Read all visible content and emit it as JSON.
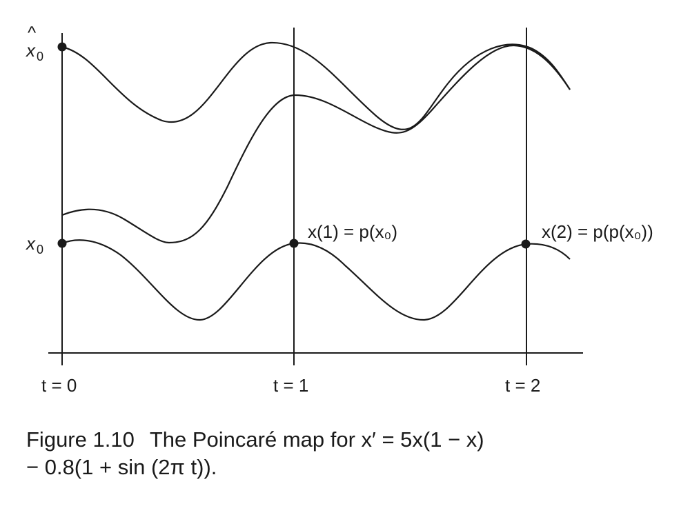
{
  "figure": {
    "y_labels": {
      "xhat0_hat": "^",
      "xhat0_base": "x",
      "xhat0_sub": "0",
      "x0_base": "x",
      "x0_sub": "0"
    },
    "t_labels": [
      "t = 0",
      "t = 1",
      "t = 2"
    ],
    "annotations": {
      "p1": "x(1) = p(x₀)",
      "p2": "x(2) = p(p(x₀))"
    }
  },
  "caption": {
    "number": "Figure 1.10",
    "line1": "The Poincaré map for x′ = 5x(1 − x)",
    "line2": "− 0.8(1 + sin (2π t))."
  }
}
